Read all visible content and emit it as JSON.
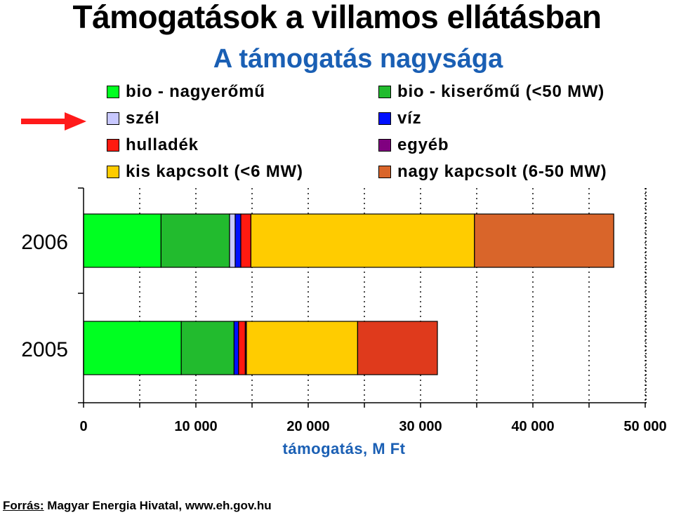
{
  "header": {
    "title": "Támogatások a villamos ellátásban",
    "subtitle": "A támogatás nagysága"
  },
  "chart_data": {
    "type": "bar",
    "orientation": "horizontal",
    "stacked": true,
    "title": "A támogatás nagysága",
    "xlabel": "támogatás, M Ft",
    "ylabel": "",
    "xlim": [
      0,
      50000
    ],
    "x_ticks": [
      0,
      10000,
      20000,
      30000,
      40000,
      50000
    ],
    "x_tick_labels": [
      "0",
      "10 000",
      "20 000",
      "30 000",
      "40 000",
      "50 000"
    ],
    "categories": [
      "2006",
      "2005"
    ],
    "legend_position": "top",
    "grid": "vertical dotted",
    "series": [
      {
        "name": "bio - nagyerőmű",
        "color": "#00ff21",
        "values": [
          6900,
          8700
        ]
      },
      {
        "name": "bio - kiserőmű (<50 MW)",
        "color": "#22bb2e",
        "values": [
          6100,
          4700
        ]
      },
      {
        "name": "szél",
        "color": "#c8c8ff",
        "values": [
          500,
          0
        ]
      },
      {
        "name": "víz",
        "color": "#0010ff",
        "values": [
          500,
          400
        ]
      },
      {
        "name": "hulladék",
        "color": "#ff1a10",
        "values": [
          900,
          600
        ]
      },
      {
        "name": "egyéb",
        "color": "#800080",
        "values": [
          0,
          100
        ]
      },
      {
        "name": "kis kapcsolt (<6 MW)",
        "color": "#ffcc00",
        "values": [
          19900,
          9900
        ]
      },
      {
        "name": "nagy kapcsolt (6-50 MW)",
        "color": "#d9652a",
        "values": [
          12400,
          0
        ]
      },
      {
        "name": "nagy kapcsolt (6-50 MW)",
        "color": "#df3a1c",
        "values": [
          0,
          7100
        ]
      }
    ],
    "legend": [
      {
        "name": "bio - nagyerőmű",
        "color": "#00ff21"
      },
      {
        "name": "szél",
        "color": "#c8c8ff"
      },
      {
        "name": "hulladék",
        "color": "#ff1a10"
      },
      {
        "name": "kis kapcsolt (<6 MW)",
        "color": "#ffcc00"
      },
      {
        "name": "bio - kiserőmű (<50 MW)",
        "color": "#22bb2e"
      },
      {
        "name": "víz",
        "color": "#0010ff"
      },
      {
        "name": "egyéb",
        "color": "#800080"
      },
      {
        "name": "nagy kapcsolt (6-50 MW)",
        "color": "#d9652a"
      }
    ]
  },
  "annotation": {
    "arrow_color": "#ff1a1a",
    "points_to": "szél"
  },
  "footer": {
    "source_label": "Forrás:",
    "source_text": " Magyar Energia Hivatal, www.eh.gov.hu"
  }
}
